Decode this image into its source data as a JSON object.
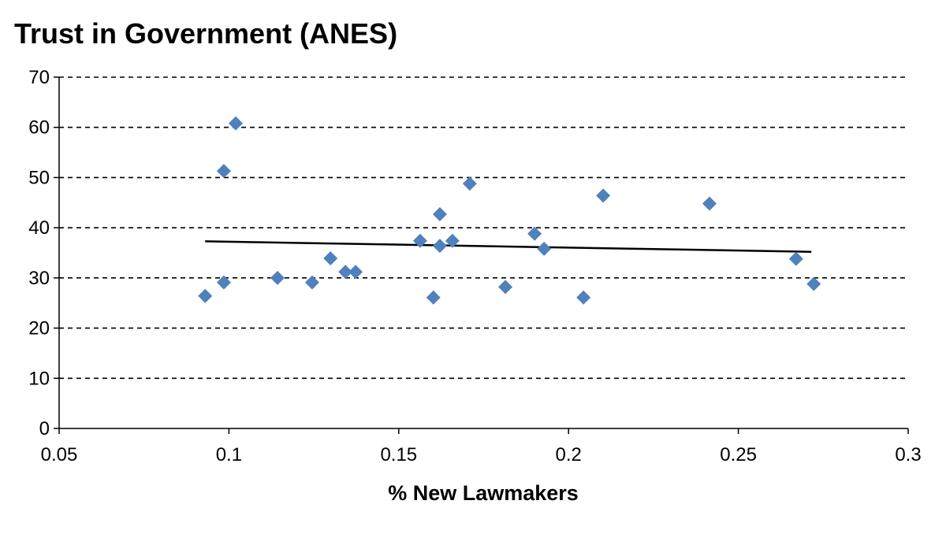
{
  "chart_data": {
    "type": "scatter",
    "title": "Trust in Government (ANES)",
    "xlabel": "% New Lawmakers",
    "ylabel": "",
    "xlim": [
      0.05,
      0.3
    ],
    "ylim": [
      0,
      70
    ],
    "xticks": [
      "0.05",
      "0.1",
      "0.15",
      "0.2",
      "0.25",
      "0.3"
    ],
    "yticks": [
      "0",
      "10",
      "20",
      "30",
      "40",
      "50",
      "60",
      "70"
    ],
    "grid": "horizontal dashed",
    "legend": "none",
    "color": "#4f81bd",
    "series": [
      {
        "name": "Trust in Government",
        "points": [
          [
            0.093,
            26.4
          ],
          [
            0.0985,
            51.3
          ],
          [
            0.102,
            60.8
          ],
          [
            0.0985,
            29.1
          ],
          [
            0.1143,
            30.0
          ],
          [
            0.1245,
            29.1
          ],
          [
            0.1299,
            33.9
          ],
          [
            0.1343,
            31.2
          ],
          [
            0.1373,
            31.2
          ],
          [
            0.1563,
            37.4
          ],
          [
            0.1621,
            42.7
          ],
          [
            0.1621,
            36.4
          ],
          [
            0.1658,
            37.4
          ],
          [
            0.1602,
            26.1
          ],
          [
            0.1709,
            48.8
          ],
          [
            0.1814,
            28.2
          ],
          [
            0.19,
            38.8
          ],
          [
            0.1928,
            35.8
          ],
          [
            0.2044,
            26.1
          ],
          [
            0.2102,
            46.4
          ],
          [
            0.2415,
            44.8
          ],
          [
            0.267,
            33.8
          ],
          [
            0.2722,
            28.8
          ]
        ]
      }
    ],
    "trendline": {
      "type": "linear",
      "x": [
        0.093,
        0.2715
      ],
      "y": [
        37.3,
        35.2
      ],
      "color": "#000000"
    }
  }
}
